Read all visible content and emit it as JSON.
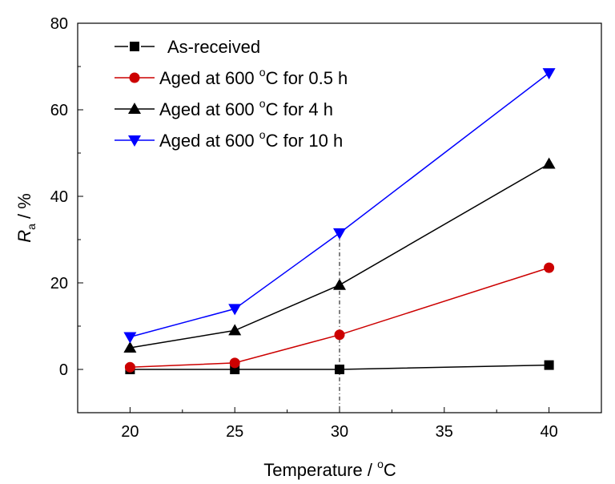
{
  "chart_data": {
    "type": "line",
    "xlabel": "Temperature /  °C",
    "ylabel": "Ra / %",
    "ylabel_main": "R",
    "ylabel_sub": "a",
    "ylabel_unit": " / %",
    "xlabel_text": "Temperature / ",
    "xlabel_sup": "o",
    "xlabel_unit": "C",
    "xlim": [
      17.5,
      42.5
    ],
    "ylim": [
      -10,
      80
    ],
    "xticks": [
      20,
      25,
      30,
      35,
      40
    ],
    "yticks": [
      0,
      20,
      40,
      60,
      80
    ],
    "grid": false,
    "legend_position": "top-left",
    "reference_line_x": 30,
    "series": [
      {
        "name": "As-received",
        "name_parts": [
          "As-received",
          "",
          ""
        ],
        "marker": "square",
        "color": "#000000",
        "x": [
          20,
          25,
          30,
          40
        ],
        "values": [
          0,
          0,
          0,
          1
        ]
      },
      {
        "name": "Aged at 600 °C for 0.5 h",
        "name_parts": [
          "Aged at 600 ",
          "o",
          "C for 0.5 h"
        ],
        "marker": "circle",
        "color": "#cc0000",
        "x": [
          20,
          25,
          30,
          40
        ],
        "values": [
          0.5,
          1.5,
          8,
          23.5
        ]
      },
      {
        "name": "Aged at 600 °C for 4 h",
        "name_parts": [
          "Aged at 600 ",
          "o",
          "C for 4 h"
        ],
        "marker": "triangle-up",
        "color": "#000000",
        "x": [
          20,
          25,
          30,
          40
        ],
        "values": [
          5,
          9,
          19.5,
          47.5
        ]
      },
      {
        "name": "Aged at 600 °C for 10 h",
        "name_parts": [
          "Aged at 600 ",
          "o",
          "C for 10 h"
        ],
        "marker": "triangle-down",
        "color": "#0000ff",
        "x": [
          20,
          25,
          30,
          40
        ],
        "values": [
          7.5,
          14,
          31.5,
          68.5
        ]
      }
    ]
  }
}
